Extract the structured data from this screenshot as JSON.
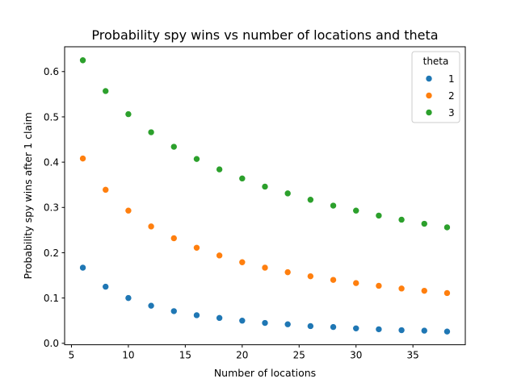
{
  "chart_data": {
    "type": "scatter",
    "title": "Probability spy wins vs number of locations and theta",
    "xlabel": "Number of locations",
    "ylabel": "Probability spy wins after 1 claim",
    "xlim": [
      4.4,
      39.6
    ],
    "ylim": [
      -0.0032,
      0.6548
    ],
    "xticks": [
      5,
      10,
      15,
      20,
      25,
      30,
      35
    ],
    "yticks": [
      0.0,
      0.1,
      0.2,
      0.3,
      0.4,
      0.5,
      0.6
    ],
    "ytick_labels": [
      "0.0",
      "0.1",
      "0.2",
      "0.3",
      "0.4",
      "0.5",
      "0.6"
    ],
    "grid": false,
    "legend": {
      "title": "theta",
      "position": "top-right"
    },
    "x": [
      6,
      8,
      10,
      12,
      14,
      16,
      18,
      20,
      22,
      24,
      26,
      28,
      30,
      32,
      34,
      36,
      38
    ],
    "series": [
      {
        "name": "1",
        "color": "#1f77b4",
        "values": [
          0.167,
          0.125,
          0.1,
          0.083,
          0.071,
          0.062,
          0.056,
          0.05,
          0.045,
          0.042,
          0.038,
          0.036,
          0.033,
          0.031,
          0.029,
          0.028,
          0.026
        ]
      },
      {
        "name": "2",
        "color": "#ff7f0e",
        "values": [
          0.408,
          0.339,
          0.293,
          0.258,
          0.232,
          0.211,
          0.194,
          0.179,
          0.167,
          0.157,
          0.148,
          0.14,
          0.133,
          0.127,
          0.121,
          0.116,
          0.111
        ]
      },
      {
        "name": "3",
        "color": "#2ca02c",
        "values": [
          0.625,
          0.557,
          0.506,
          0.466,
          0.434,
          0.407,
          0.384,
          0.364,
          0.346,
          0.331,
          0.317,
          0.304,
          0.293,
          0.282,
          0.273,
          0.264,
          0.256
        ]
      }
    ]
  }
}
